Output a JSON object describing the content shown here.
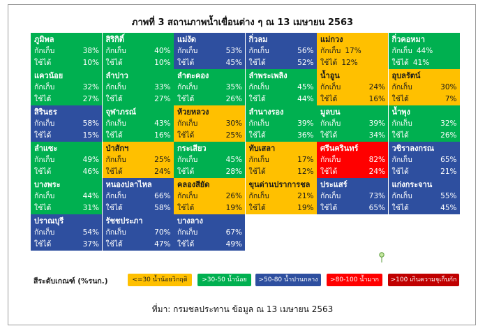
{
  "title": "ภาพที่ 3 สถานภาพน้ำเขื่อนต่าง ๆ ณ 13 เมษายน 2563",
  "source": "ที่มา: กรมชลประทาน ข้อมูล ณ 13 เมษายน 2563",
  "colors": {
    "red": "#ff0000",
    "orange": "#ffc000",
    "green": "#00b050",
    "blue": "#2e4f9f",
    "crimson": "#c00000"
  },
  "chart_data": {
    "type": "table",
    "row_labels": [
      "กักเก็บ",
      "ใช้ได้"
    ],
    "columns": 6,
    "cells": [
      {
        "name": "ภูมิพล",
        "storage": "38%",
        "usable": "10%",
        "color": "green"
      },
      {
        "name": "สิริกิติ์",
        "storage": "40%",
        "usable": "10%",
        "color": "green"
      },
      {
        "name": "แม่งัด",
        "storage": "53%",
        "usable": "45%",
        "color": "blue"
      },
      {
        "name": "กิ่วลม",
        "storage": "56%",
        "usable": "52%",
        "color": "blue"
      },
      {
        "name": "แม่กวง",
        "storage": "17%",
        "usable": "12%",
        "color": "orange",
        "tight": true
      },
      {
        "name": "กิ่วคอหมา",
        "storage": "44%",
        "usable": "41%",
        "color": "green",
        "tight": true
      },
      {
        "name": "แควน้อย",
        "storage": "32%",
        "usable": "27%",
        "color": "green"
      },
      {
        "name": "ลำปาว",
        "storage": "33%",
        "usable": "27%",
        "color": "green"
      },
      {
        "name": "ลำตะคอง",
        "storage": "35%",
        "usable": "26%",
        "color": "green"
      },
      {
        "name": "ลำพระเพลิง",
        "storage": "45%",
        "usable": "44%",
        "color": "green"
      },
      {
        "name": "น้ำอูน",
        "storage": "24%",
        "usable": "16%",
        "color": "orange"
      },
      {
        "name": "อุบลรัตน์",
        "storage": "30%",
        "usable": "7%",
        "color": "orange"
      },
      {
        "name": "สิรินธร",
        "storage": "58%",
        "usable": "15%",
        "color": "blue"
      },
      {
        "name": "จุฬาภรณ์",
        "storage": "43%",
        "usable": "16%",
        "color": "green"
      },
      {
        "name": "ห้วยหลวง",
        "storage": "30%",
        "usable": "25%",
        "color": "orange"
      },
      {
        "name": "ลำนางรอง",
        "storage": "39%",
        "usable": "36%",
        "color": "green"
      },
      {
        "name": "มูลบน",
        "storage": "39%",
        "usable": "34%",
        "color": "green"
      },
      {
        "name": "น้ำพุง",
        "storage": "32%",
        "usable": "26%",
        "color": "green"
      },
      {
        "name": "ลำแซะ",
        "storage": "49%",
        "usable": "46%",
        "color": "green"
      },
      {
        "name": "ป่าสักฯ",
        "storage": "25%",
        "usable": "24%",
        "color": "orange"
      },
      {
        "name": "กระเสียว",
        "storage": "45%",
        "usable": "28%",
        "color": "green"
      },
      {
        "name": "ทับเสลา",
        "storage": "17%",
        "usable": "12%",
        "color": "orange"
      },
      {
        "name": "ศรีนครินทร์",
        "storage": "82%",
        "usable": "24%",
        "color": "red"
      },
      {
        "name": "วชิราลงกรณ",
        "storage": "65%",
        "usable": "21%",
        "color": "blue"
      },
      {
        "name": "บางพระ",
        "storage": "44%",
        "usable": "31%",
        "color": "green"
      },
      {
        "name": "หนองปลาไหล",
        "storage": "66%",
        "usable": "58%",
        "color": "blue"
      },
      {
        "name": "คลองสียัด",
        "storage": "26%",
        "usable": "19%",
        "color": "orange"
      },
      {
        "name": "ขุนด่านปราการชล",
        "storage": "21%",
        "usable": "19%",
        "color": "orange"
      },
      {
        "name": "ประแสร์",
        "storage": "73%",
        "usable": "65%",
        "color": "blue"
      },
      {
        "name": "แก่งกระจาน",
        "storage": "55%",
        "usable": "45%",
        "color": "blue"
      },
      {
        "name": "ปราณบุรี",
        "storage": "54%",
        "usable": "37%",
        "color": "blue"
      },
      {
        "name": "รัชชประภา",
        "storage": "70%",
        "usable": "47%",
        "color": "blue"
      },
      {
        "name": "บางลาง",
        "storage": "67%",
        "usable": "49%",
        "color": "blue"
      }
    ],
    "legend": {
      "title": "สีระดับเกณฑ์ (%รนก.)",
      "items": [
        {
          "label": "<=30 น้ำน้อยวิกฤติ",
          "color": "orange"
        },
        {
          "label": ">30-50 น้ำน้อย",
          "color": "green"
        },
        {
          "label": ">50-80 น้ำปานกลาง",
          "color": "blue"
        },
        {
          "label": ">80-100 น้ำมาก",
          "color": "red"
        },
        {
          "label": ">100 เกินความจุเก็บกัก",
          "color": "crimson"
        }
      ]
    }
  }
}
